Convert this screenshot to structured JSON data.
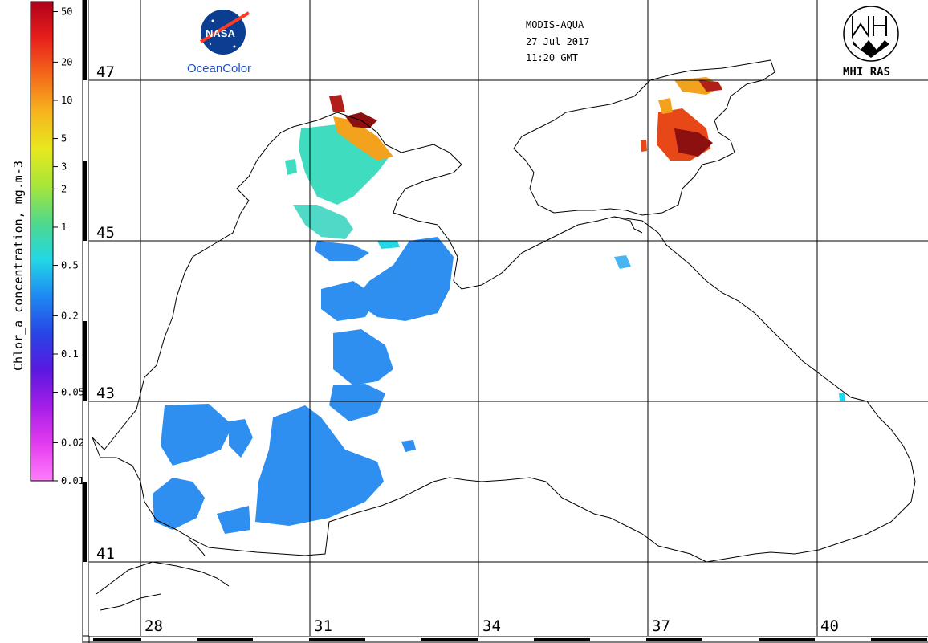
{
  "header": {
    "sensor": "MODIS-AQUA",
    "date": "27 Jul 2017",
    "time": "11:20 GMT"
  },
  "logos": {
    "nasa_text": "NASA",
    "oceancolor_text": "OceanColor",
    "mhi_text": "MHI RAS"
  },
  "colorbar": {
    "title": "Chlor_a concentration, mg.m-3",
    "ticks": [
      "50",
      "20",
      "10",
      "5",
      "3",
      "2",
      "1",
      "0.5",
      "0.2",
      "0.1",
      "0.05",
      "0.02",
      "0.01"
    ],
    "colors": [
      "#b0001a",
      "#e8201c",
      "#f46a1a",
      "#f7b51e",
      "#e7e81e",
      "#a6e63a",
      "#4fd98a",
      "#22d7e6",
      "#1e88f2",
      "#2845e6",
      "#5a18e0",
      "#a61ee8",
      "#e43cef",
      "#ff7dfb"
    ]
  },
  "map": {
    "lat_labels": [
      "47",
      "45",
      "43",
      "41"
    ],
    "lon_labels": [
      "28",
      "31",
      "34",
      "37",
      "40"
    ],
    "colors": {
      "land": "#ffffff",
      "coast": "#000000",
      "grid": "#000000",
      "low_chl": "#2f8ff0",
      "mid_chl": "#3fdcbf",
      "high_chl": "#e84818",
      "very_high_chl": "#8c1010",
      "moderate_chl": "#f2a21c"
    }
  }
}
